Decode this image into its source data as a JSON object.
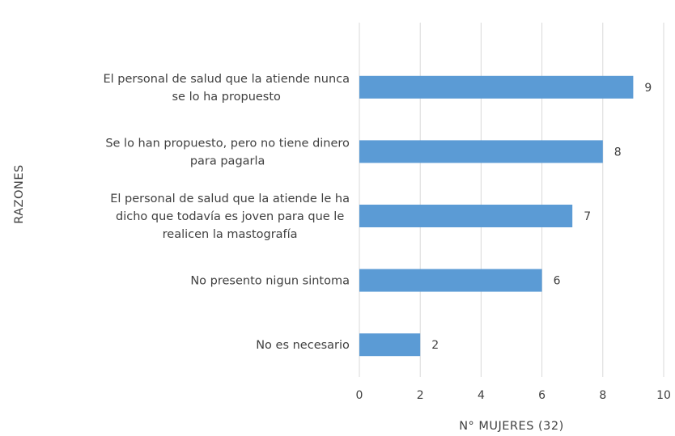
{
  "chart_data": {
    "type": "bar",
    "orientation": "horizontal",
    "categories": [
      [
        "El personal de salud que la atiende nunca",
        "se lo ha propuesto"
      ],
      [
        "Se lo han propuesto, pero no tiene dinero",
        "para pagarla"
      ],
      [
        "El personal de salud que la atiende le ha",
        "dicho que todavía es joven para que le",
        "realicen la mastografía"
      ],
      [
        "No presento nigun sintoma"
      ],
      [
        "No es necesario"
      ]
    ],
    "values": [
      9,
      8,
      7,
      6,
      2
    ],
    "data_labels": [
      "9",
      "8",
      "7",
      "6",
      "2"
    ],
    "xlabel": "N° MUJERES  (32)",
    "ylabel": "RAZONES",
    "xlim": [
      0,
      10
    ],
    "xticks": [
      "0",
      "2",
      "4",
      "6",
      "8",
      "10"
    ],
    "grid": "vertical",
    "bar_color": "#5b9bd5"
  }
}
